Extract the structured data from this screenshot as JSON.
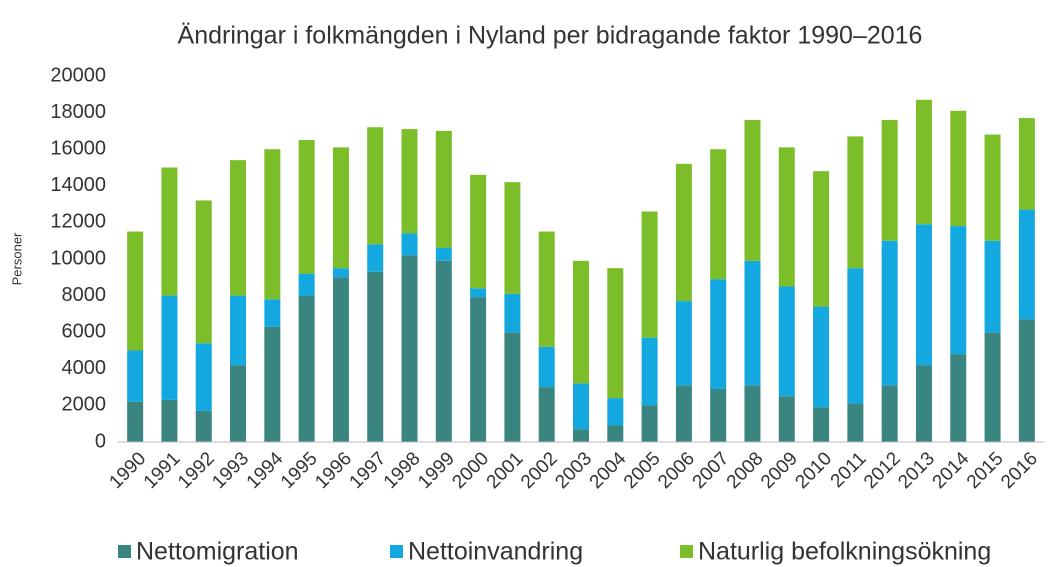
{
  "chart_data": {
    "type": "stacked_bar",
    "title": "Ändringar i folkmängden i Nyland per bidragande faktor 1990–2016",
    "y_label": "Personer",
    "categories": [
      "1990",
      "1991",
      "1992",
      "1993",
      "1994",
      "1995",
      "1996",
      "1997",
      "1998",
      "1999",
      "2000",
      "2001",
      "2002",
      "2003",
      "2004",
      "2005",
      "2006",
      "2007",
      "2008",
      "2009",
      "2010",
      "2011",
      "2012",
      "2013",
      "2014",
      "2015",
      "2016"
    ],
    "series": [
      {
        "name": "Nettomigration",
        "color": "#3a8580",
        "values": [
          2200,
          2300,
          1700,
          4200,
          6300,
          8000,
          9000,
          9300,
          10200,
          9900,
          7900,
          6000,
          3000,
          700,
          900,
          2000,
          3100,
          2900,
          3100,
          2500,
          1900,
          2100,
          3100,
          4200,
          4800,
          6000,
          6700
        ]
      },
      {
        "name": "Nettoinvandring",
        "color": "#13a8e0",
        "values": [
          2800,
          5700,
          3700,
          3800,
          1500,
          1200,
          500,
          1500,
          1200,
          700,
          500,
          2100,
          2200,
          2500,
          1500,
          3700,
          4600,
          6000,
          6800,
          6000,
          5500,
          7400,
          7900,
          7700,
          7000,
          5000,
          6000
        ]
      },
      {
        "name": "Naturlig befolkningsökning",
        "color": "#7cbd2a",
        "values": [
          6500,
          7000,
          7800,
          7400,
          8200,
          7300,
          6600,
          6400,
          5700,
          6400,
          6200,
          6100,
          6300,
          6700,
          7100,
          6900,
          7500,
          7100,
          7700,
          7600,
          7400,
          7200,
          6600,
          6800,
          6300,
          5800,
          5000
        ]
      }
    ],
    "ylim": [
      0,
      20000
    ],
    "yticks": [
      0,
      2000,
      4000,
      6000,
      8000,
      10000,
      12000,
      14000,
      16000,
      18000,
      20000
    ],
    "grid": false,
    "legend": "bottom"
  }
}
